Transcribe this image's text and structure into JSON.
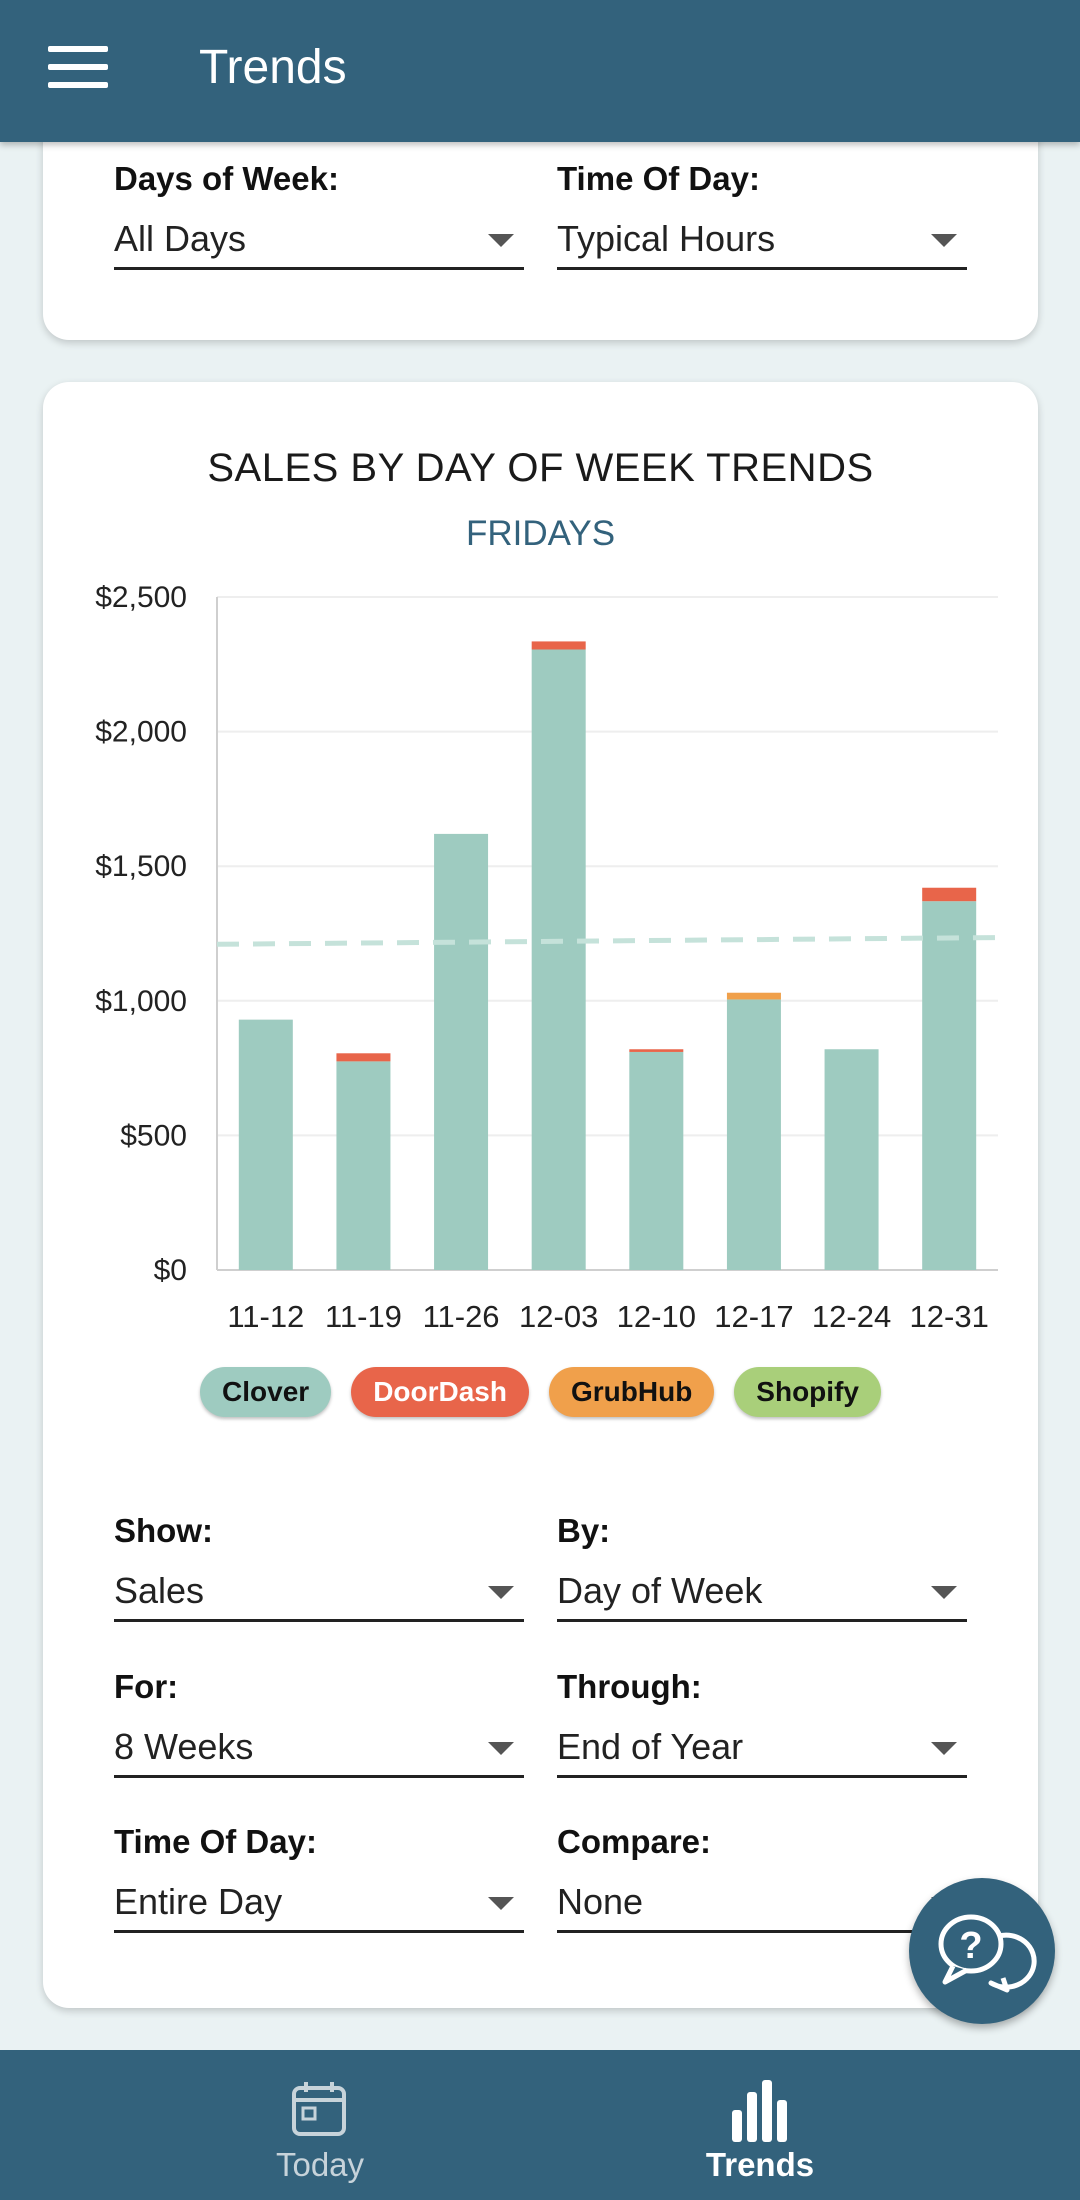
{
  "appbar": {
    "title": "Trends"
  },
  "top_filters": {
    "days_of_week": {
      "label": "Days of Week:",
      "value": "All Days"
    },
    "time_of_day": {
      "label": "Time Of Day:",
      "value": "Typical Hours"
    }
  },
  "chart": {
    "title": "SALES BY DAY OF WEEK TRENDS",
    "subtitle": "FRIDAYS"
  },
  "chart_data": {
    "type": "bar",
    "stacked": true,
    "title": "SALES BY DAY OF WEEK TRENDS",
    "subtitle": "FRIDAYS",
    "categories": [
      "11-12",
      "11-19",
      "11-26",
      "12-03",
      "12-10",
      "12-17",
      "12-24",
      "12-31"
    ],
    "series": [
      {
        "name": "Clover",
        "color": "#9ecbc0",
        "values": [
          930,
          775,
          1620,
          2305,
          810,
          1005,
          820,
          1370
        ]
      },
      {
        "name": "DoorDash",
        "color": "#e8654a",
        "values": [
          0,
          30,
          0,
          30,
          10,
          0,
          0,
          50
        ]
      },
      {
        "name": "GrubHub",
        "color": "#f0a04b",
        "values": [
          0,
          0,
          0,
          0,
          0,
          25,
          0,
          0
        ]
      },
      {
        "name": "Shopify",
        "color": "#a9cf7a",
        "values": [
          0,
          0,
          0,
          0,
          0,
          0,
          0,
          0
        ]
      }
    ],
    "average_line": {
      "start": 1210,
      "end": 1235,
      "style": "dashed"
    },
    "ylim": [
      0,
      2500
    ],
    "yticks": [
      0,
      500,
      1000,
      1500,
      2000,
      2500
    ],
    "ytick_labels": [
      "$0",
      "$500",
      "$1,000",
      "$1,500",
      "$2,000",
      "$2,500"
    ],
    "xlabel": "",
    "ylabel": "",
    "grid": true,
    "legend_position": "bottom"
  },
  "legend": [
    {
      "name": "Clover",
      "bg": "#9ecbc0",
      "fg": "#111111"
    },
    {
      "name": "DoorDash",
      "bg": "#e8654a",
      "fg": "#ffffff"
    },
    {
      "name": "GrubHub",
      "bg": "#f0a04b",
      "fg": "#111111"
    },
    {
      "name": "Shopify",
      "bg": "#a9cf7a",
      "fg": "#111111"
    }
  ],
  "controls": {
    "show": {
      "label": "Show:",
      "value": "Sales"
    },
    "by": {
      "label": "By:",
      "value": "Day of Week"
    },
    "for": {
      "label": "For:",
      "value": "8 Weeks"
    },
    "through": {
      "label": "Through:",
      "value": "End of Year"
    },
    "time_of_day": {
      "label": "Time Of Day:",
      "value": "Entire Day"
    },
    "compare": {
      "label": "Compare:",
      "value": "None"
    }
  },
  "bottom_nav": {
    "today": {
      "label": "Today",
      "icon": "calendar-icon"
    },
    "trends": {
      "label": "Trends",
      "icon": "bar-chart-icon",
      "active": true
    }
  },
  "colors": {
    "primary": "#33627c",
    "background": "#eaf2f3"
  }
}
